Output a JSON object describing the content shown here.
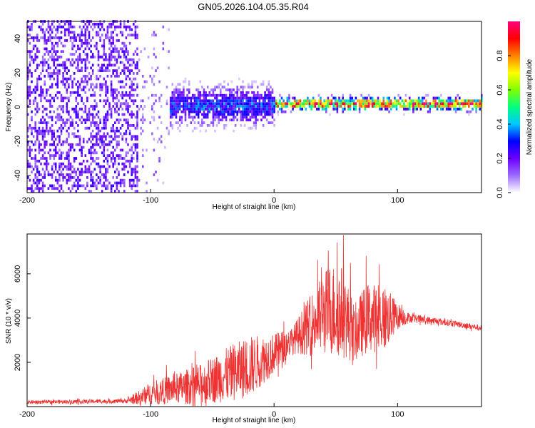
{
  "title": "GN05.2026.104.05.35.R04",
  "chart_data": [
    {
      "type": "heatmap",
      "xlabel": "Height of straight line (km)",
      "ylabel": "Frequency (Hz)",
      "xlim": [
        -200,
        168
      ],
      "ylim": [
        -50,
        50
      ],
      "x_ticks": [
        -200,
        -100,
        0,
        100
      ],
      "y_ticks": [
        -40,
        -20,
        0,
        20,
        40
      ],
      "colorbar": {
        "label": "Normalized spectral amplitude",
        "range": [
          0,
          1
        ],
        "ticks": [
          0.0,
          0.2,
          0.4,
          0.6,
          0.8
        ],
        "colors": [
          "#ffffff",
          "#9b6bff",
          "#6a00ff",
          "#0000ff",
          "#00c8ff",
          "#00ff80",
          "#80ff00",
          "#ffff00",
          "#ff8000",
          "#ff0000",
          "#ff0080"
        ]
      },
      "description_regions": [
        {
          "x_range": [
            -200,
            -110
          ],
          "freq_spread": 50,
          "amplitude": 0.15
        },
        {
          "x_range": [
            -110,
            -85
          ],
          "freq_spread": 25,
          "amplitude": 0.1
        },
        {
          "x_range": [
            -85,
            0
          ],
          "freq_spread": 12,
          "amplitude": 0.3
        },
        {
          "x_range": [
            0,
            168
          ],
          "freq_spread": 4,
          "amplitude": 0.85
        }
      ]
    },
    {
      "type": "line",
      "xlabel": "Height of straight line (km)",
      "ylabel": "SNR (10 * v/v)",
      "xlim": [
        -200,
        168
      ],
      "ylim": [
        0,
        7800
      ],
      "x_ticks": [
        -200,
        -100,
        0,
        100
      ],
      "y_ticks": [
        2000,
        4000,
        6000
      ],
      "color": "#ee3333",
      "envelope": [
        {
          "x": -200,
          "base": 200,
          "amp": 80
        },
        {
          "x": -120,
          "base": 250,
          "amp": 100
        },
        {
          "x": -110,
          "base": 400,
          "amp": 300
        },
        {
          "x": -100,
          "base": 600,
          "amp": 500
        },
        {
          "x": -80,
          "base": 800,
          "amp": 700
        },
        {
          "x": -60,
          "base": 1000,
          "amp": 900
        },
        {
          "x": -40,
          "base": 1400,
          "amp": 1200
        },
        {
          "x": -20,
          "base": 1800,
          "amp": 1400
        },
        {
          "x": 0,
          "base": 2400,
          "amp": 900
        },
        {
          "x": 15,
          "base": 3000,
          "amp": 600
        },
        {
          "x": 30,
          "base": 3700,
          "amp": 1400
        },
        {
          "x": 45,
          "base": 4400,
          "amp": 2100
        },
        {
          "x": 55,
          "base": 4300,
          "amp": 2100
        },
        {
          "x": 65,
          "base": 3300,
          "amp": 1300
        },
        {
          "x": 75,
          "base": 4000,
          "amp": 1600
        },
        {
          "x": 90,
          "base": 4000,
          "amp": 1500
        },
        {
          "x": 100,
          "base": 4100,
          "amp": 600
        },
        {
          "x": 110,
          "base": 4000,
          "amp": 200
        },
        {
          "x": 140,
          "base": 3800,
          "amp": 150
        },
        {
          "x": 168,
          "base": 3550,
          "amp": 130
        }
      ]
    }
  ]
}
